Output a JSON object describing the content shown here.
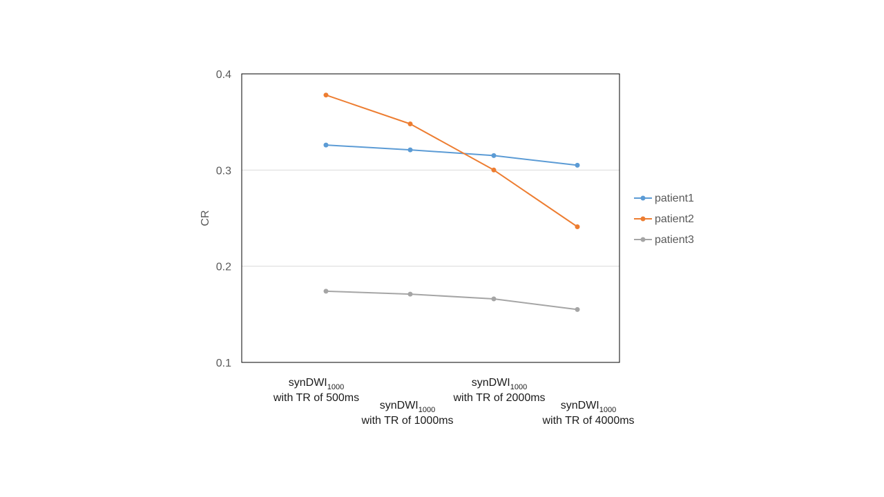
{
  "chart_data": {
    "type": "line",
    "title": "",
    "xlabel": "",
    "ylabel": "CR",
    "ylim": [
      0.1,
      0.4
    ],
    "yticks": [
      "0.1",
      "0.2",
      "0.3",
      "0.4"
    ],
    "grid": true,
    "legend_position": "right",
    "categories": [
      {
        "line1_main": "synDWI",
        "line1_sub": "1000",
        "line2": "with TR of 500ms"
      },
      {
        "line1_main": "synDWI",
        "line1_sub": "1000",
        "line2": "with TR of 1000ms"
      },
      {
        "line1_main": "synDWI",
        "line1_sub": "1000",
        "line2": "with TR of 2000ms"
      },
      {
        "line1_main": "synDWI",
        "line1_sub": "1000",
        "line2": "with TR of 4000ms"
      }
    ],
    "series": [
      {
        "name": "patient1",
        "color": "#5B9BD5",
        "values": [
          0.326,
          0.321,
          0.315,
          0.305
        ]
      },
      {
        "name": "patient2",
        "color": "#ED7D31",
        "values": [
          0.378,
          0.348,
          0.3,
          0.241
        ]
      },
      {
        "name": "patient3",
        "color": "#A5A5A5",
        "values": [
          0.174,
          0.171,
          0.166,
          0.155
        ]
      }
    ]
  }
}
